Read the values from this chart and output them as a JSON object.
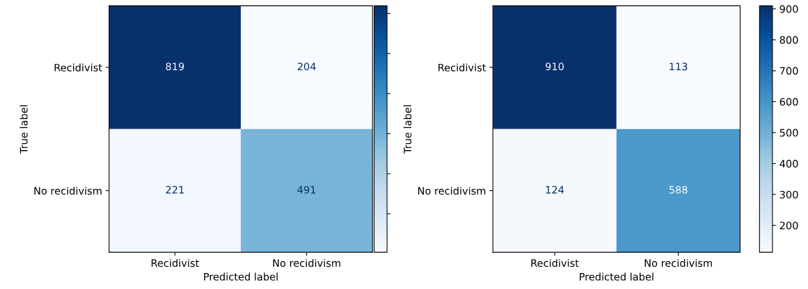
{
  "chart_data": [
    {
      "type": "heatmap",
      "xlabel": "Predicted label",
      "ylabel": "True label",
      "categories": [
        "Recidivist",
        "No recidivism"
      ],
      "y_categories": [
        "Recidivist",
        "No recidivism"
      ],
      "cells": [
        [
          819,
          204
        ],
        [
          221,
          491
        ]
      ],
      "data_labels": true
    },
    {
      "type": "heatmap",
      "xlabel": "Predicted label",
      "ylabel": "True label",
      "categories": [
        "Recidivist",
        "No recidivism"
      ],
      "y_categories": [
        "Recidivist",
        "No recidivism"
      ],
      "cells": [
        [
          910,
          113
        ],
        [
          124,
          588
        ]
      ],
      "clim": [
        113,
        910
      ],
      "cticks": [
        200,
        300,
        400,
        500,
        600,
        700,
        800,
        900
      ],
      "data_labels": true
    }
  ]
}
